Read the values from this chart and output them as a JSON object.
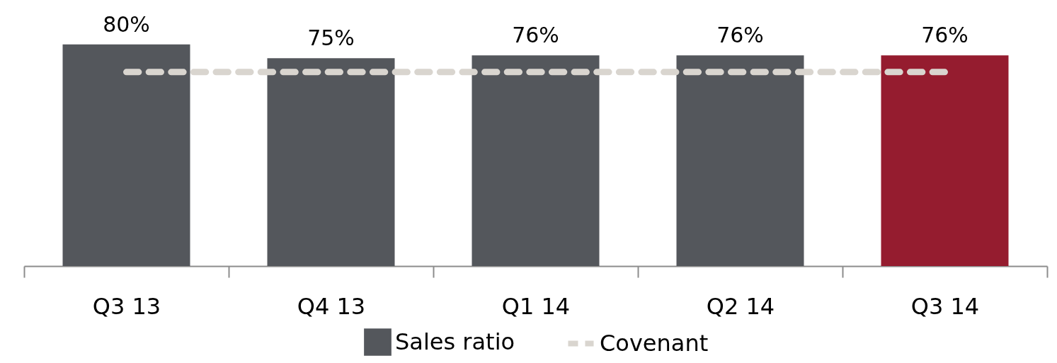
{
  "chart_data": {
    "type": "bar",
    "categories": [
      "Q3 13",
      "Q4 13",
      "Q1 14",
      "Q2 14",
      "Q3 14"
    ],
    "series": [
      {
        "name": "Sales ratio",
        "colors": [
          "#54575c",
          "#54575c",
          "#54575c",
          "#54575c",
          "#951c2f"
        ],
        "values": [
          80,
          75,
          76,
          76,
          76
        ],
        "value_labels": [
          "80%",
          "75%",
          "76%",
          "76%",
          "76%"
        ]
      },
      {
        "name": "Covenant",
        "type": "line",
        "color": "#d9d5cf",
        "line_style": "dashed",
        "values": [
          70,
          70,
          70,
          70,
          70
        ]
      }
    ],
    "tick_labels": "x",
    "legend": "bottom",
    "grid": false
  }
}
